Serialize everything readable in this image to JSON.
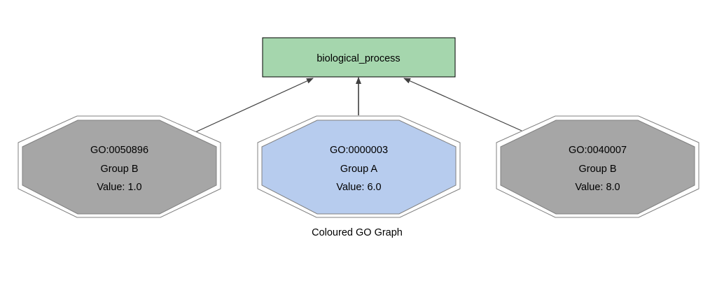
{
  "root": {
    "label": "biological_process",
    "fill": "#a5d6ad"
  },
  "nodes": [
    {
      "id": "GO:0050896",
      "group": "Group B",
      "value": "Value: 1.0",
      "fill": "#a6a6a6"
    },
    {
      "id": "GO:0000003",
      "group": "Group A",
      "value": "Value: 6.0",
      "fill": "#b7ccee"
    },
    {
      "id": "GO:0040007",
      "group": "Group B",
      "value": "Value: 8.0",
      "fill": "#a6a6a6"
    }
  ],
  "caption": "Coloured GO Graph"
}
